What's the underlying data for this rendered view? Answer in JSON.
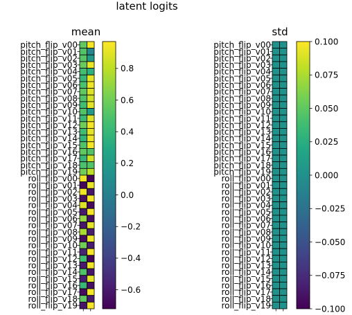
{
  "chart_data": {
    "type": "heatmap",
    "title": "latent logits",
    "row_labels": [
      "pitch_flip_v00",
      "pitch_flip_v01",
      "pitch_flip_v02",
      "pitch_flip_v03",
      "pitch_flip_v04",
      "pitch_flip_v05",
      "pitch_flip_v06",
      "pitch_flip_v07",
      "pitch_flip_v08",
      "pitch_flip_v09",
      "pitch_flip_v10",
      "pitch_flip_v11",
      "pitch_flip_v12",
      "pitch_flip_v13",
      "pitch_flip_v14",
      "pitch_flip_v15",
      "pitch_flip_v16",
      "pitch_flip_v17",
      "pitch_flip_v18",
      "pitch_flip_v19",
      "roll_flip_v00",
      "roll_flip_v01",
      "roll_flip_v02",
      "roll_flip_v03",
      "roll_flip_v04",
      "roll_flip_v05",
      "roll_flip_v06",
      "roll_flip_v07",
      "roll_flip_v08",
      "roll_flip_v09",
      "roll_flip_v10",
      "roll_flip_v11",
      "roll_flip_v12",
      "roll_flip_v13",
      "roll_flip_v14",
      "roll_flip_v15",
      "roll_flip_v16",
      "roll_flip_v17",
      "roll_flip_v18",
      "roll_flip_v19"
    ],
    "panels": [
      {
        "title": "mean",
        "vmin": -0.72,
        "vmax": 0.97,
        "colorbar_ticks": [
          -0.6,
          -0.4,
          -0.2,
          0.0,
          0.2,
          0.4,
          0.6,
          0.8
        ],
        "colorbar_tick_labels": [
          "−0.6",
          "−0.4",
          "−0.2",
          "0.0",
          "0.2",
          "0.4",
          "0.6",
          "0.8"
        ],
        "values": [
          [
            0.55,
            0.95
          ],
          [
            0.5,
            0.05
          ],
          [
            0.52,
            0.2
          ],
          [
            0.58,
            0.92
          ],
          [
            0.45,
            0.35
          ],
          [
            0.4,
            0.9
          ],
          [
            0.48,
            0.93
          ],
          [
            0.55,
            0.88
          ],
          [
            0.5,
            0.85
          ],
          [
            0.45,
            0.9
          ],
          [
            0.5,
            0.2
          ],
          [
            0.42,
            0.88
          ],
          [
            0.6,
            0.95
          ],
          [
            0.45,
            0.9
          ],
          [
            0.38,
            0.93
          ],
          [
            0.5,
            0.95
          ],
          [
            0.55,
            0.5
          ],
          [
            0.4,
            0.85
          ],
          [
            0.48,
            0.5
          ],
          [
            0.6,
            0.8
          ],
          [
            0.95,
            -0.7
          ],
          [
            -0.68,
            0.92
          ],
          [
            0.93,
            -0.62
          ],
          [
            -0.65,
            0.94
          ],
          [
            0.88,
            -0.68
          ],
          [
            -0.6,
            0.95
          ],
          [
            0.7,
            -0.65
          ],
          [
            -0.62,
            0.9
          ],
          [
            0.75,
            -0.58
          ],
          [
            -0.66,
            0.92
          ],
          [
            0.6,
            -0.6
          ],
          [
            -0.55,
            0.95
          ],
          [
            0.45,
            -0.7
          ],
          [
            -0.6,
            0.93
          ],
          [
            0.5,
            -0.62
          ],
          [
            -0.58,
            0.9
          ],
          [
            0.4,
            -0.65
          ],
          [
            -0.66,
            0.94
          ],
          [
            0.55,
            -0.6
          ],
          [
            -0.62,
            0.95
          ]
        ]
      },
      {
        "title": "std",
        "vmin": -0.1,
        "vmax": 0.1,
        "colorbar_ticks": [
          -0.1,
          -0.075,
          -0.05,
          -0.025,
          0.0,
          0.025,
          0.05,
          0.075,
          0.1
        ],
        "colorbar_tick_labels": [
          "−0.100",
          "−0.075",
          "−0.050",
          "−0.025",
          "0.000",
          "0.025",
          "0.050",
          "0.075",
          "0.100"
        ],
        "constant_value": 0.0
      }
    ]
  }
}
